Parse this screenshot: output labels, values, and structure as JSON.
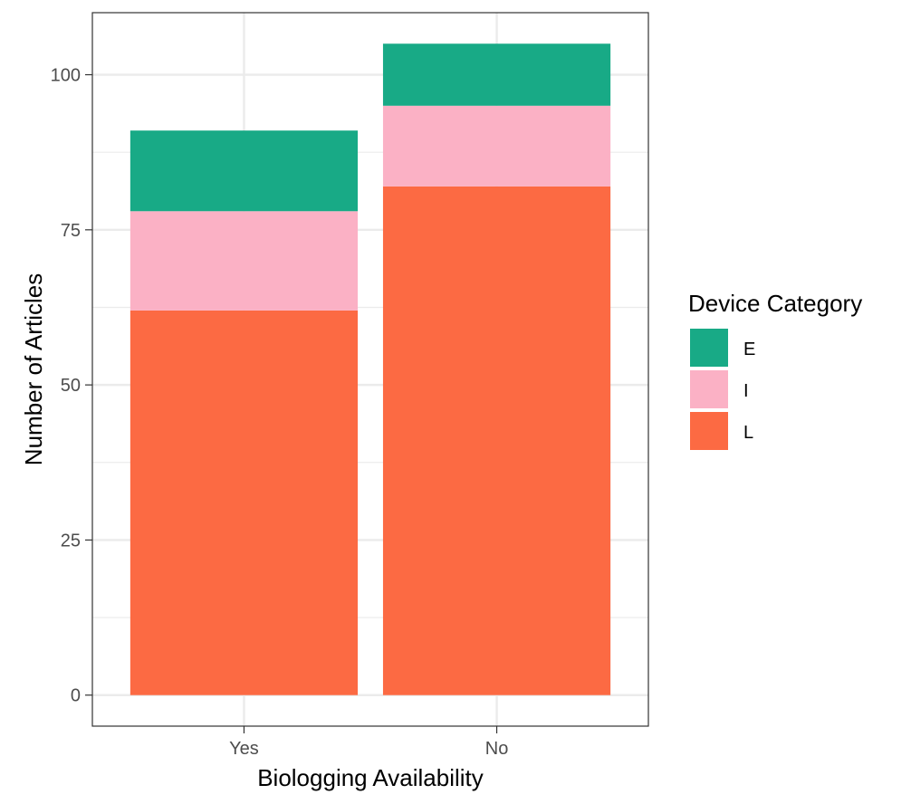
{
  "chart_data": {
    "type": "bar",
    "stacked": true,
    "categories": [
      "Yes",
      "No"
    ],
    "series": [
      {
        "name": "L",
        "values": [
          62,
          82
        ],
        "color": "#FC6A43"
      },
      {
        "name": "I",
        "values": [
          16,
          13
        ],
        "color": "#FBB1C5"
      },
      {
        "name": "E",
        "values": [
          13,
          10
        ],
        "color": "#18AA86"
      }
    ],
    "xlabel": "Biologging Availability",
    "ylabel": "Number of Articles",
    "ylim": [
      -5,
      110
    ],
    "yticks": [
      0,
      25,
      50,
      75,
      100
    ],
    "grid": true,
    "legend": {
      "title": "Device Category",
      "placement": "right",
      "order": [
        "E",
        "I",
        "L"
      ]
    }
  }
}
